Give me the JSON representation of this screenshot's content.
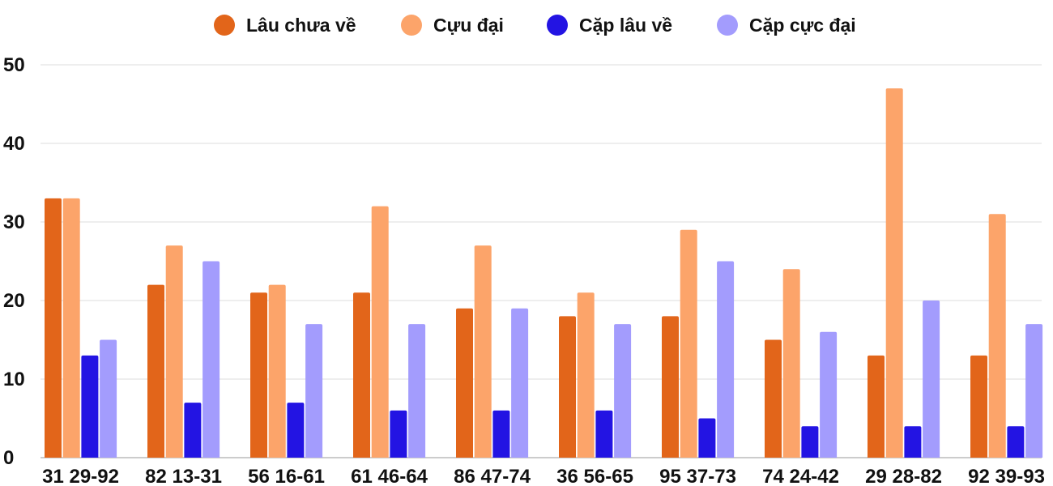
{
  "chart_data": {
    "type": "bar",
    "categories": [
      "31 29-92",
      "82 13-31",
      "56 16-61",
      "61 46-64",
      "86 47-74",
      "36 56-65",
      "95 37-73",
      "74 24-42",
      "29 28-82",
      "92 39-93"
    ],
    "series": [
      {
        "name": "Lâu chưa về",
        "color": "#e2651a",
        "values": [
          33,
          22,
          21,
          21,
          19,
          18,
          18,
          15,
          13,
          13
        ]
      },
      {
        "name": "Cựu đại",
        "color": "#fca46a",
        "values": [
          33,
          27,
          22,
          32,
          27,
          21,
          29,
          24,
          47,
          31
        ]
      },
      {
        "name": "Cặp lâu về",
        "color": "#2314e3",
        "values": [
          13,
          7,
          7,
          6,
          6,
          6,
          5,
          4,
          4,
          4
        ]
      },
      {
        "name": "Cặp cực đại",
        "color": "#a39cfd",
        "values": [
          15,
          25,
          17,
          17,
          19,
          17,
          25,
          16,
          20,
          17
        ]
      }
    ],
    "ylim": [
      0,
      50
    ],
    "yticks": [
      "0",
      "10",
      "20",
      "30",
      "40",
      "50"
    ],
    "title": "",
    "xlabel": "",
    "ylabel": "",
    "grid": true,
    "legend_position": "top-center"
  }
}
